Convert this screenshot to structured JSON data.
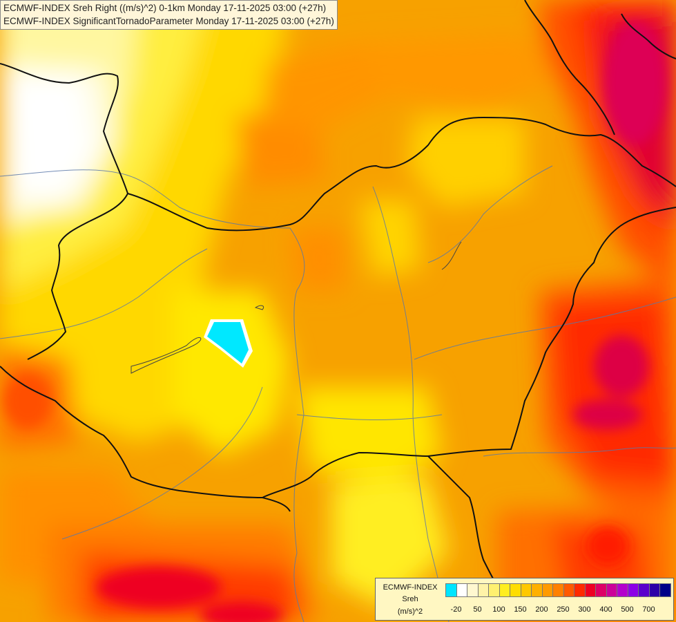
{
  "header": {
    "line1": "ECMWF-INDEX Sreh Right ((m/s)^2) 0-1km Monday 17-11-2025 03:00 (+27h)",
    "line2": "ECMWF-INDEX SignificantTornadoParameter Monday 17-11-2025 03:00 (+27h)"
  },
  "legend": {
    "line1": "ECMWF-INDEX",
    "line2": "Sreh",
    "line3": "(m/s)^2",
    "colors": [
      "#00e5ff",
      "#ffffff",
      "#fff8d0",
      "#fff3a8",
      "#fff070",
      "#ffee20",
      "#ffdd00",
      "#ffc800",
      "#ffb000",
      "#ff9a00",
      "#ff8000",
      "#ff5a00",
      "#ff2a00",
      "#ee0022",
      "#dd0066",
      "#cc0099",
      "#b400cc",
      "#8c00e6",
      "#5a00cc",
      "#2d00a8",
      "#000088"
    ],
    "ticks": [
      "-20",
      "50",
      "100",
      "150",
      "200",
      "250",
      "300",
      "400",
      "500",
      "700"
    ]
  }
}
